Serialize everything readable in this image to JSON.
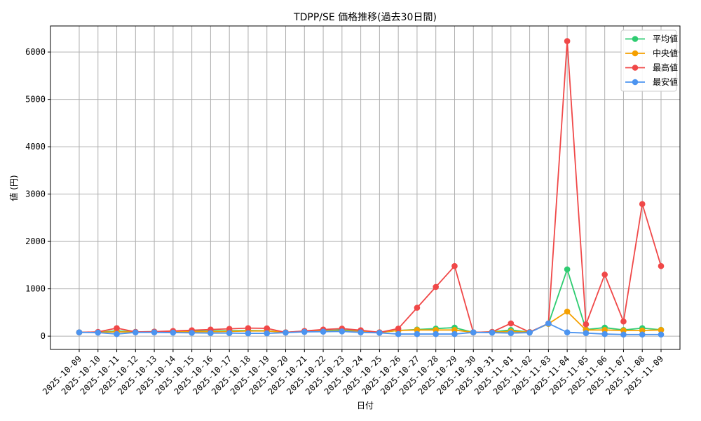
{
  "chart_data": {
    "type": "line",
    "title": "TDPP/SE 価格推移(過去30日間)",
    "xlabel": "日付",
    "ylabel": "値 (円)",
    "ylim": [
      -280,
      6550
    ],
    "yticks": [
      0,
      1000,
      2000,
      3000,
      4000,
      5000,
      6000
    ],
    "grid": true,
    "legend_position": "top-right",
    "categories": [
      "2025-10-09",
      "2025-10-10",
      "2025-10-11",
      "2025-10-12",
      "2025-10-13",
      "2025-10-14",
      "2025-10-15",
      "2025-10-16",
      "2025-10-17",
      "2025-10-18",
      "2025-10-19",
      "2025-10-20",
      "2025-10-21",
      "2025-10-22",
      "2025-10-23",
      "2025-10-24",
      "2025-10-25",
      "2025-10-26",
      "2025-10-27",
      "2025-10-28",
      "2025-10-29",
      "2025-10-30",
      "2025-10-31",
      "2025-11-01",
      "2025-11-02",
      "2025-11-03",
      "2025-11-04",
      "2025-11-05",
      "2025-11-06",
      "2025-11-07",
      "2025-11-08",
      "2025-11-09"
    ],
    "series": [
      {
        "name": "平均値",
        "color": "#2ecc71",
        "values": [
          80,
          85,
          110,
          90,
          95,
          100,
          105,
          110,
          115,
          120,
          115,
          80,
          105,
          120,
          130,
          110,
          80,
          120,
          140,
          160,
          180,
          80,
          90,
          130,
          85,
          260,
          1410,
          140,
          180,
          130,
          170,
          135
        ]
      },
      {
        "name": "中央値",
        "color": "#f5a000",
        "values": [
          80,
          85,
          90,
          90,
          90,
          95,
          95,
          95,
          100,
          110,
          110,
          80,
          100,
          110,
          110,
          100,
          80,
          120,
          130,
          130,
          130,
          80,
          85,
          100,
          85,
          260,
          520,
          130,
          130,
          120,
          120,
          130
        ]
      },
      {
        "name": "最高値",
        "color": "#f04848",
        "values": [
          80,
          90,
          170,
          90,
          95,
          110,
          125,
          140,
          155,
          170,
          165,
          80,
          110,
          140,
          160,
          125,
          80,
          160,
          600,
          1040,
          1480,
          80,
          90,
          270,
          85,
          270,
          6230,
          250,
          1300,
          310,
          2790,
          1480
        ]
      },
      {
        "name": "最安値",
        "color": "#4c94f0",
        "values": [
          80,
          75,
          45,
          80,
          80,
          75,
          70,
          65,
          65,
          60,
          60,
          75,
          90,
          95,
          100,
          80,
          70,
          45,
          45,
          45,
          45,
          80,
          75,
          65,
          75,
          270,
          80,
          65,
          45,
          35,
          35,
          35
        ]
      }
    ]
  }
}
